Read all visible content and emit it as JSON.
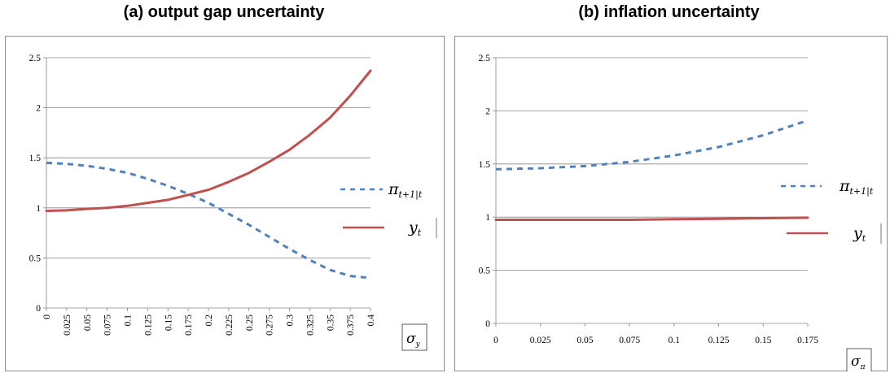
{
  "chart_data": [
    {
      "type": "line",
      "title": "(a) output gap uncertainty",
      "xlabel": "σy",
      "ylim": [
        0,
        2.5
      ],
      "yticks": [
        "0",
        "0.5",
        "1",
        "1.5",
        "2",
        "2.5"
      ],
      "x": [
        "0",
        "0.025",
        "0.05",
        "0.075",
        "0.1",
        "0.125",
        "0.15",
        "0.175",
        "0.2",
        "0.225",
        "0.25",
        "0.275",
        "0.3",
        "0.325",
        "0.35",
        "0.375",
        "0.4"
      ],
      "grid": "horizontal",
      "legend": "right",
      "series": [
        {
          "name": "π_{t+1|t}",
          "style": "dashed",
          "color": "#4f81bd",
          "values": [
            1.45,
            1.44,
            1.42,
            1.39,
            1.35,
            1.29,
            1.22,
            1.14,
            1.05,
            0.94,
            0.83,
            0.71,
            0.59,
            0.48,
            0.38,
            0.32,
            0.3
          ]
        },
        {
          "name": "y_t",
          "style": "solid",
          "color": "#c0504d",
          "values": [
            0.97,
            0.975,
            0.99,
            1.0,
            1.02,
            1.05,
            1.08,
            1.13,
            1.18,
            1.26,
            1.35,
            1.46,
            1.58,
            1.73,
            1.9,
            2.12,
            2.37
          ]
        }
      ]
    },
    {
      "type": "line",
      "title": "(b) inflation uncertainty",
      "xlabel": "σπ",
      "ylim": [
        0,
        2.5
      ],
      "yticks": [
        "0",
        "0.5",
        "1",
        "1.5",
        "2",
        "2.5"
      ],
      "x": [
        "0",
        "0.025",
        "0.05",
        "0.075",
        "0.1",
        "0.125",
        "0.15",
        "0.175"
      ],
      "grid": "horizontal",
      "legend": "right",
      "series": [
        {
          "name": "π_{t+1|t}",
          "style": "dashed",
          "color": "#4f81bd",
          "values": [
            1.45,
            1.46,
            1.48,
            1.52,
            1.58,
            1.66,
            1.77,
            1.91
          ]
        },
        {
          "name": "y_t",
          "style": "solid",
          "color": "#c0504d",
          "values": [
            0.975,
            0.975,
            0.975,
            0.975,
            0.98,
            0.985,
            0.99,
            0.995
          ]
        }
      ]
    }
  ]
}
